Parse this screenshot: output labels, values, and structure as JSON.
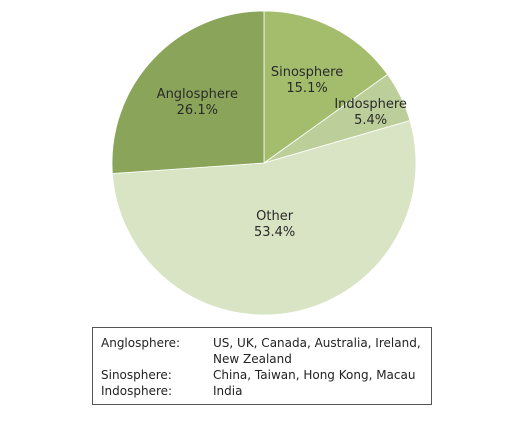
{
  "chart_data": {
    "type": "pie",
    "title": "",
    "slices": [
      {
        "label": "Sinosphere",
        "value": 15.1,
        "value_label": "15.1%",
        "color": "#a3bd6d"
      },
      {
        "label": "Indosphere",
        "value": 5.4,
        "value_label": "5.4%",
        "color": "#bccf9a"
      },
      {
        "label": "Other",
        "value": 53.4,
        "value_label": "53.4%",
        "color": "#d9e4c5"
      },
      {
        "label": "Anglosphere",
        "value": 26.1,
        "value_label": "26.1%",
        "color": "#8aa55a"
      }
    ],
    "start_angle_deg": 0,
    "direction": "clockwise",
    "legend_placement": "bottom"
  },
  "legend": {
    "rows": [
      {
        "key": "Anglosphere:",
        "value": "US, UK, Canada, Australia, Ireland, New Zealand"
      },
      {
        "key": "Sinosphere:",
        "value": "China, Taiwan, Hong Kong, Macau"
      },
      {
        "key": "Indosphere:",
        "value": "India"
      }
    ]
  }
}
